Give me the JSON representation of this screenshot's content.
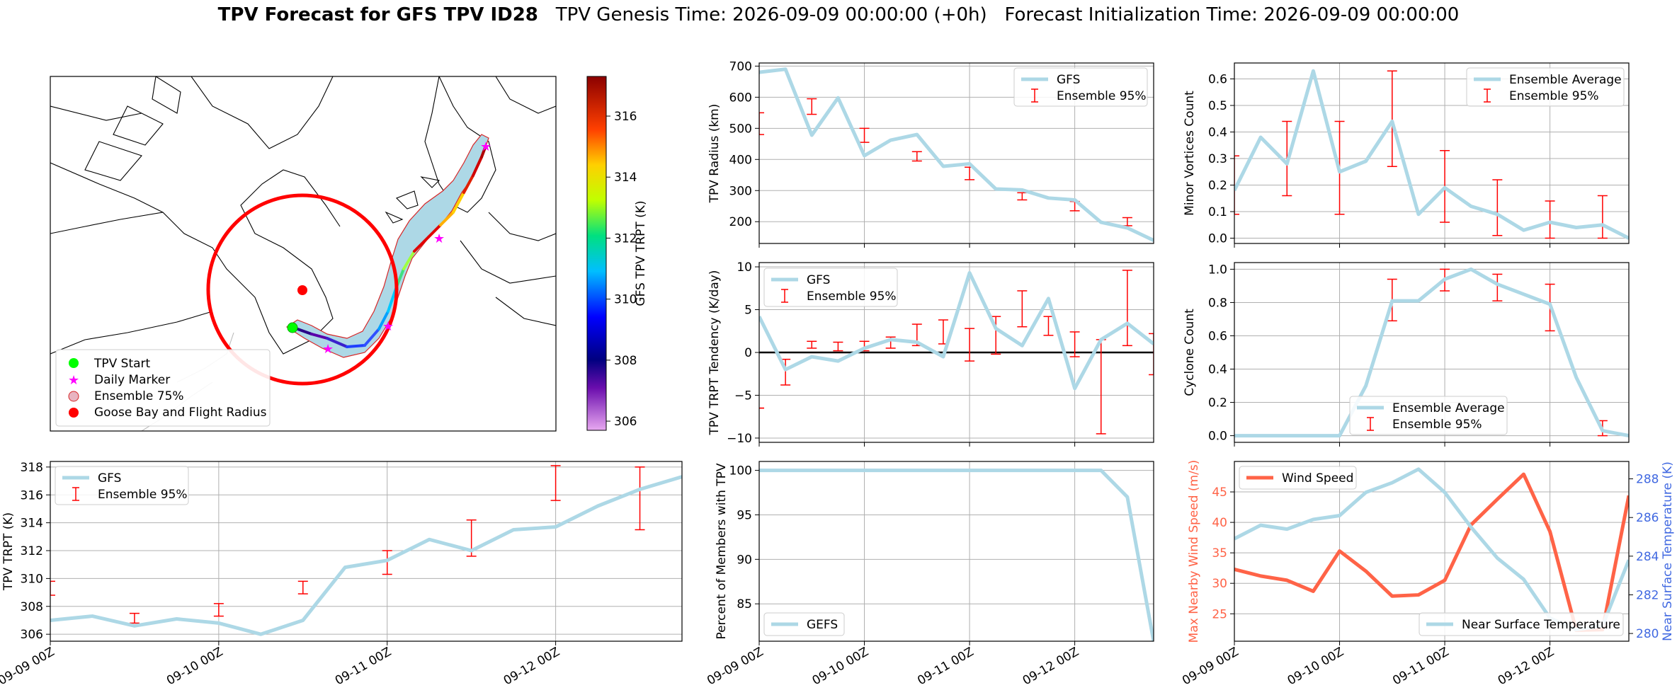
{
  "title": {
    "bold": "TPV Forecast for GFS TPV ID28",
    "genesis": "TPV Genesis Time: 2026-09-09 00:00:00 (+0h)",
    "init": "Forecast Initialization Time: 2026-09-09 00:00:00"
  },
  "colors": {
    "gfs_line": "#add8e6",
    "errorbar": "#ff0000",
    "wind": "#ff6347",
    "temp_axis": "#4169e1",
    "track_envelope": "#add8e6",
    "goose_circle": "#ff0000"
  },
  "map": {
    "legend": [
      "TPV Start",
      "Daily Marker",
      "Ensemble 75%",
      "Goose Bay and Flight Radius"
    ],
    "colorbar": {
      "label": "GFS TPV TRPT (K)",
      "ticks": [
        "306",
        "308",
        "310",
        "312",
        "314",
        "316"
      ],
      "range": [
        305.7,
        317.3
      ]
    }
  },
  "chart_data": [
    {
      "id": "map",
      "type": "scatter",
      "title": "",
      "xlabel": "",
      "ylabel": "",
      "legend": [
        "TPV Start",
        "Daily Marker",
        "Ensemble 75%",
        "Goose Bay and Flight Radius"
      ],
      "colorbar_label": "GFS TPV TRPT (K)",
      "colorbar_ticks": [
        306,
        308,
        310,
        312,
        314,
        316
      ]
    },
    {
      "id": "radius",
      "type": "line",
      "ylabel": "TPV Radius (km)",
      "ylim": [
        130,
        710
      ],
      "yticks": [
        200,
        300,
        400,
        500,
        600,
        700
      ],
      "x_hours": [
        0,
        6,
        12,
        18,
        24,
        30,
        36,
        42,
        48,
        54,
        60,
        66,
        72,
        78,
        84,
        90
      ],
      "series": [
        {
          "name": "GFS",
          "values": [
            680,
            690,
            478,
            598,
            412,
            462,
            480,
            378,
            386,
            305,
            302,
            276,
            270,
            198,
            180,
            140
          ]
        }
      ],
      "errorbars": {
        "name": "Ensemble 95%",
        "x_hours": [
          0,
          12,
          24,
          36,
          48,
          60,
          72,
          84
        ],
        "low": [
          480,
          545,
          455,
          395,
          335,
          270,
          235,
          187
        ],
        "high": [
          550,
          595,
          500,
          425,
          375,
          293,
          265,
          213
        ]
      },
      "legend": [
        "GFS",
        "Ensemble 95%"
      ],
      "legend_loc": "upper right"
    },
    {
      "id": "minor",
      "type": "line",
      "ylabel": "Minor Vortices Count",
      "ylim": [
        -0.02,
        0.66
      ],
      "yticks": [
        "0.0",
        "0.1",
        "0.2",
        "0.3",
        "0.4",
        "0.5",
        "0.6"
      ],
      "x_hours": [
        0,
        6,
        12,
        18,
        24,
        30,
        36,
        42,
        48,
        54,
        60,
        66,
        72,
        78,
        84,
        90
      ],
      "series": [
        {
          "name": "Ensemble Average",
          "values": [
            0.18,
            0.38,
            0.28,
            0.63,
            0.25,
            0.29,
            0.44,
            0.09,
            0.19,
            0.12,
            0.09,
            0.03,
            0.06,
            0.04,
            0.05,
            0.0
          ]
        }
      ],
      "errorbars": {
        "name": "Ensemble 95%",
        "x_hours": [
          0,
          12,
          24,
          36,
          48,
          60,
          72,
          84
        ],
        "low": [
          0.09,
          0.16,
          0.09,
          0.27,
          0.06,
          0.01,
          0.0,
          0.0
        ],
        "high": [
          0.31,
          0.44,
          0.44,
          0.63,
          0.33,
          0.22,
          0.14,
          0.16
        ]
      },
      "legend": [
        "Ensemble Average",
        "Ensemble 95%"
      ],
      "legend_loc": "upper right"
    },
    {
      "id": "tendency",
      "type": "line",
      "ylabel": "TPV TRPT Tendency (K/day)",
      "ylim": [
        -10.5,
        10.5
      ],
      "yticks": [
        "−10",
        "−5",
        "0",
        "5",
        "10"
      ],
      "x_hours": [
        0,
        6,
        12,
        18,
        24,
        30,
        36,
        42,
        48,
        54,
        60,
        66,
        72,
        78,
        84,
        90
      ],
      "series": [
        {
          "name": "GFS",
          "values": [
            4.2,
            -2.0,
            -0.5,
            -1.0,
            0.5,
            1.5,
            1.2,
            -0.5,
            9.3,
            2.8,
            0.8,
            6.3,
            -4.2,
            1.5,
            3.4,
            1.0
          ]
        }
      ],
      "errorbars": {
        "name": "Ensemble 95%",
        "x_hours": [
          0,
          6,
          12,
          18,
          24,
          30,
          36,
          42,
          48,
          54,
          60,
          66,
          72,
          78,
          84,
          90
        ],
        "low": [
          -6.5,
          -3.8,
          0.5,
          0.2,
          0.2,
          0.5,
          0.8,
          1.0,
          -1.0,
          -0.2,
          3.0,
          2.0,
          -0.5,
          -9.5,
          0.8,
          -2.6
        ],
        "high": [
          -6.5,
          -0.8,
          1.3,
          1.2,
          1.3,
          1.8,
          3.3,
          3.8,
          2.8,
          4.2,
          7.2,
          4.2,
          2.4,
          1.5,
          9.6,
          2.2
        ]
      },
      "zero_line": true,
      "legend": [
        "GFS",
        "Ensemble 95%"
      ],
      "legend_loc": "upper left"
    },
    {
      "id": "cyclone",
      "type": "line",
      "ylabel": "Cyclone Count",
      "ylim": [
        -0.04,
        1.04
      ],
      "yticks": [
        "0.0",
        "0.2",
        "0.4",
        "0.6",
        "0.8",
        "1.0"
      ],
      "x_hours": [
        0,
        6,
        12,
        18,
        24,
        30,
        36,
        42,
        48,
        54,
        60,
        66,
        72,
        78,
        84,
        90
      ],
      "series": [
        {
          "name": "Ensemble Average",
          "values": [
            0,
            0,
            0,
            0,
            0,
            0.3,
            0.81,
            0.81,
            0.94,
            1.0,
            0.91,
            0.85,
            0.79,
            0.35,
            0.03,
            0.0
          ]
        }
      ],
      "errorbars": {
        "name": "Ensemble 95%",
        "x_hours": [
          12,
          36,
          48,
          60,
          72,
          84
        ],
        "low": [
          0,
          0.69,
          0.87,
          0.81,
          0.63,
          0.0
        ],
        "high": [
          0,
          0.94,
          1.0,
          0.97,
          0.91,
          0.09
        ]
      },
      "legend": [
        "Ensemble Average",
        "Ensemble 95%"
      ],
      "legend_loc": "lower center"
    },
    {
      "id": "trpt",
      "type": "line",
      "ylabel": "TPV TRPT (K)",
      "ylim": [
        305.5,
        318.4
      ],
      "yticks": [
        "306",
        "308",
        "310",
        "312",
        "314",
        "316",
        "318"
      ],
      "xticks": [
        "09-09 00Z",
        "09-10 00Z",
        "09-11 00Z",
        "09-12 00Z"
      ],
      "x_hours": [
        0,
        6,
        12,
        18,
        24,
        30,
        36,
        42,
        48,
        54,
        60,
        66,
        72,
        78,
        84,
        90
      ],
      "series": [
        {
          "name": "GFS",
          "values": [
            307.0,
            307.3,
            306.6,
            307.1,
            306.8,
            306.0,
            307.0,
            310.8,
            311.3,
            312.8,
            312.0,
            313.5,
            313.7,
            315.2,
            316.4,
            317.3
          ]
        }
      ],
      "errorbars": {
        "name": "Ensemble 95%",
        "x_hours": [
          0,
          12,
          24,
          36,
          48,
          60,
          72,
          84
        ],
        "low": [
          308.8,
          306.8,
          307.3,
          308.9,
          310.3,
          311.6,
          315.6,
          313.5
        ],
        "high": [
          309.8,
          307.5,
          308.2,
          309.8,
          312.0,
          314.2,
          318.1,
          318.0
        ]
      },
      "legend": [
        "GFS",
        "Ensemble 95%"
      ],
      "legend_loc": "upper left"
    },
    {
      "id": "percent",
      "type": "line",
      "ylabel": "Percent of Members with TPV",
      "ylim": [
        80.8,
        101.0
      ],
      "yticks": [
        "85",
        "90",
        "95",
        "100"
      ],
      "xticks": [
        "09-09 00Z",
        "09-10 00Z",
        "09-11 00Z",
        "09-12 00Z"
      ],
      "x_hours": [
        0,
        6,
        12,
        18,
        24,
        30,
        36,
        42,
        48,
        54,
        60,
        66,
        72,
        78,
        84,
        90
      ],
      "series": [
        {
          "name": "GEFS",
          "values": [
            100,
            100,
            100,
            100,
            100,
            100,
            100,
            100,
            100,
            100,
            100,
            100,
            100,
            100,
            97,
            80.8
          ]
        }
      ],
      "legend": [
        "GEFS"
      ],
      "legend_loc": "lower left"
    },
    {
      "id": "wind_temp",
      "type": "line",
      "ylabel": "Max Nearby Wind Speed (m/s)",
      "y2label": "Near Surface Temperature (K)",
      "ylim": [
        20.5,
        50.0
      ],
      "yticks": [
        "25",
        "30",
        "35",
        "40",
        "45"
      ],
      "y2lim": [
        279.6,
        288.9
      ],
      "y2ticks": [
        "280",
        "282",
        "284",
        "286",
        "288"
      ],
      "xticks": [
        "09-09 00Z",
        "09-10 00Z",
        "09-11 00Z",
        "09-12 00Z"
      ],
      "x_hours": [
        0,
        6,
        12,
        18,
        24,
        30,
        36,
        42,
        48,
        54,
        60,
        66,
        72,
        78,
        84,
        90
      ],
      "series": [
        {
          "name": "Wind Speed",
          "axis": "left",
          "values": [
            32.3,
            31.2,
            30.5,
            28.7,
            35.3,
            32.0,
            27.9,
            28.1,
            30.5,
            39.6,
            43.8,
            47.9,
            38.5,
            22.3,
            22.4,
            44.4
          ]
        },
        {
          "name": "Near Surface Temperature",
          "axis": "right",
          "values": [
            284.9,
            285.6,
            285.4,
            285.9,
            286.1,
            287.3,
            287.8,
            288.5,
            287.3,
            285.5,
            283.9,
            282.8,
            280.8,
            280.2,
            280.4,
            283.8
          ]
        }
      ],
      "legend": [
        "Wind Speed",
        "Near Surface Temperature"
      ],
      "legend_loc": "upper left / lower right"
    }
  ]
}
